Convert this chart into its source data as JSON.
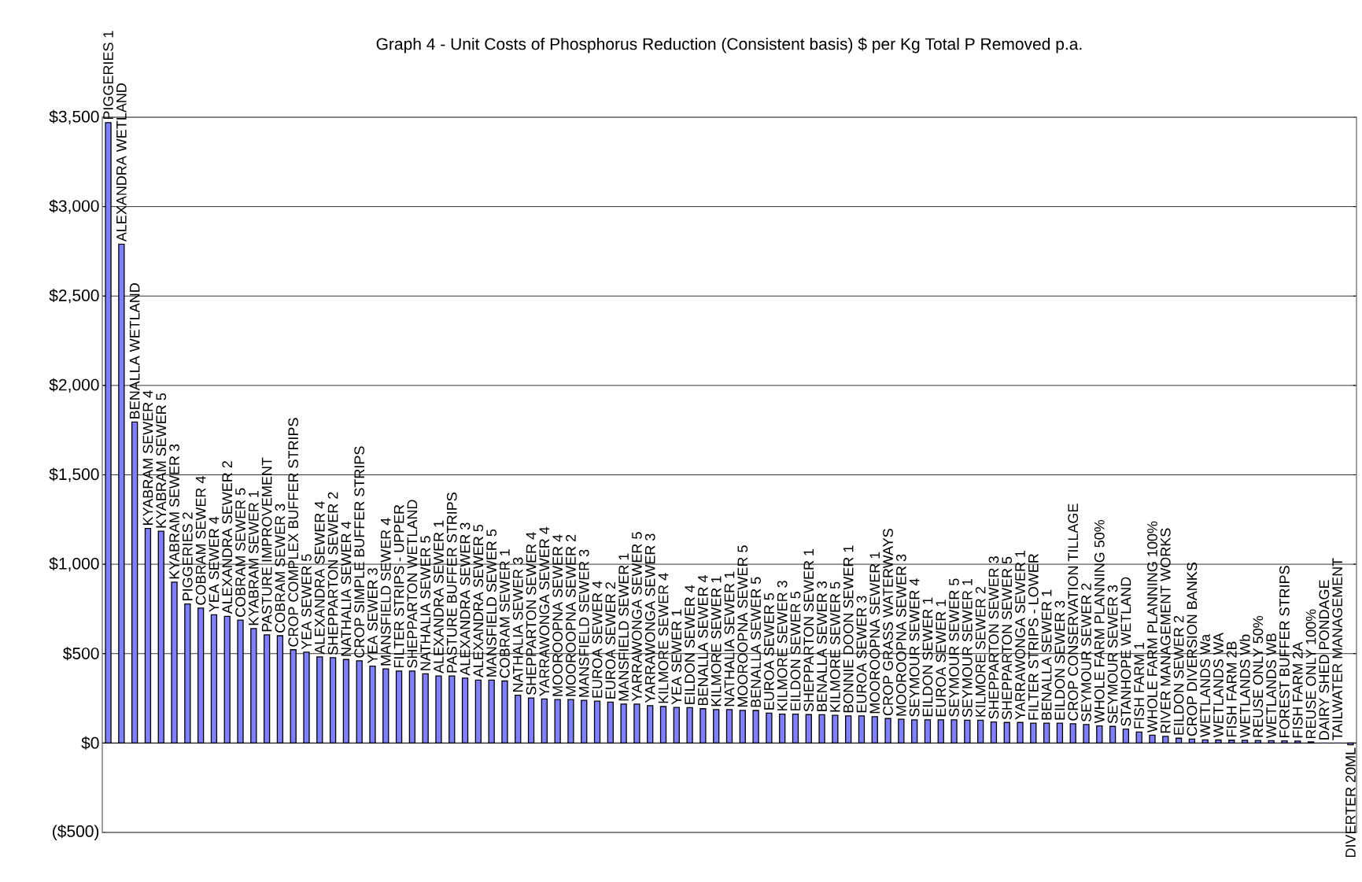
{
  "chart_data": {
    "type": "bar",
    "title": "Graph 4 - Unit Costs of Phosphorus Reduction (Consistent basis) $ per Kg Total P Removed p.a.",
    "categories": [
      "PIGGERIES 1",
      "ALEXANDRA WETLAND",
      "BENALLA WETLAND",
      "KYABRAM SEWER 4",
      "KYABRAM SEWER 5",
      "KYABRAM SEWER 3",
      "PIGGERIES 2",
      "COBRAM SEWER 4",
      "YEA SEWER 4",
      "ALEXANDRA SEWER 2",
      "COBRAM SEWER 5",
      "KYABRAM SEWER 1",
      "PASTURE IMPROVEMENT",
      "COBRAM SEWER 3",
      "CROP COMPLEX BUFFER STRIPS",
      "YEA SEWER 5",
      "ALEXANDRA SEWER 4",
      "SHEPPARTON SEWER 2",
      "NATHALIA SEWER 4",
      "CROP SIMPLE BUFFER STRIPS",
      "YEA SEWER 3",
      "MANSFIELD SEWER 4",
      "FILTER STRIPS - UPPER",
      "SHEPPARTON WETLAND",
      "NATHALIA SEWER 5",
      "ALEXANDRA SEWER 1",
      "PASTURE BUFFER STRIPS",
      "ALEXANDRA SEWER 3",
      "ALEXANDRA SEWER 5",
      "MANSFIELD SEWER 5",
      "COBRAM SEWER 1",
      "NATHALIA SEWER 3",
      "SHEPPARTON SEWER 4",
      "YARRAWONGA SEWER 4",
      "MOOROOPNA SEWER 4",
      "MOOROOPNA SEWER 2",
      "MANSFIELD SEWER 3",
      "EUROA SEWER 4",
      "EUROA SEWER 2",
      "MANSFIELD SEWER 1",
      "YARRAWONGA SEWER 5",
      "YARRAWONGA SEWER 3",
      "KILMORE SEWER 4",
      "YEA SEWER 1",
      "EILDON SEWER 4",
      "BENALLA SEWER 4",
      "KILMORE SEWER 1",
      "NATHALIA SEWER 1",
      "MOOROOPNA SEWER 5",
      "BENALLA SEWER 5",
      "EUROA SEWER 5",
      "KILMORE SEWER 3",
      "EILDON SEWER 5",
      "SHEPPARTON SEWER 1",
      "BENALLA SEWER 3",
      "KILMORE SEWER 5",
      "BONNIE DOON SEWER 1",
      "EUROA SEWER 3",
      "MOOROOPNA SEWER 1",
      "CROP GRASS WATERWAYS",
      "MOOROOPNA SEWER 3",
      "SEYMOUR SEWER 4",
      "EILDON SEWER 1",
      "EUROA SEWER 1",
      "SEYMOUR SEWER 5",
      "SEYMOUR SEWER 1",
      "KILMORE SEWER 2",
      "SHEPPARTON SEWER 3",
      "SHEPPARTON SEWER 5",
      "YARRAWONGA SEWER 1",
      "FILTER STRIPS - LOWER",
      "BENALLA SEWER 1",
      "EILDON SEWER 3",
      "CROP CONSERVATION TILLAGE",
      "SEYMOUR SEWER 2",
      "WHOLE FARM PLANNING 50%",
      "SEYMOUR SEWER 3",
      "STANHOPE WETLAND",
      "FISH FARM 1",
      "WHOLE FARM PLANNING 100%",
      "RIVER MANAGEMENT WORKS",
      "EILDON SEWER 2",
      "CROP DIVERSION BANKS",
      "WETLANDS Wa",
      "WETLANDS WA",
      "FISH FARM 2B",
      "WETLANDS Wb",
      "REUSE ONLY 50%",
      "WETLANDS WB",
      "FOREST BUFFER STRIPS",
      "FISH FARM 2A",
      "REUSE ONLY 100%",
      "DAIRY SHED PONDAGE",
      "TAILWATER MANAGEMENT",
      "DIVERTER 20ML"
    ],
    "values": [
      3470,
      2790,
      1795,
      1200,
      1185,
      900,
      778,
      755,
      717,
      708,
      688,
      640,
      605,
      600,
      522,
      508,
      482,
      477,
      467,
      460,
      430,
      415,
      403,
      403,
      387,
      375,
      375,
      363,
      352,
      352,
      347,
      267,
      252,
      246,
      243,
      243,
      239,
      234,
      229,
      218,
      218,
      209,
      204,
      199,
      198,
      192,
      187,
      187,
      183,
      182,
      167,
      162,
      162,
      159,
      158,
      155,
      152,
      152,
      147,
      137,
      133,
      130,
      130,
      130,
      130,
      128,
      128,
      118,
      115,
      115,
      111,
      111,
      111,
      108,
      103,
      96,
      93,
      78,
      62,
      44,
      37,
      27,
      22,
      18,
      17,
      16,
      15,
      14,
      13,
      12,
      11,
      7,
      0,
      0,
      -10
    ],
    "color": "#8080ff",
    "ylim": [
      -500,
      3500
    ],
    "yticks": [
      {
        "value": -500,
        "label": "($500)"
      },
      {
        "value": 0,
        "label": "$0"
      },
      {
        "value": 500,
        "label": "$500"
      },
      {
        "value": 1000,
        "label": "$1,000"
      },
      {
        "value": 1500,
        "label": "$1,500"
      },
      {
        "value": 2000,
        "label": "$2,000"
      },
      {
        "value": 2500,
        "label": "$2,500"
      },
      {
        "value": 3000,
        "label": "$3,000"
      },
      {
        "value": 3500,
        "label": "$3,500"
      }
    ],
    "grid": "y"
  }
}
